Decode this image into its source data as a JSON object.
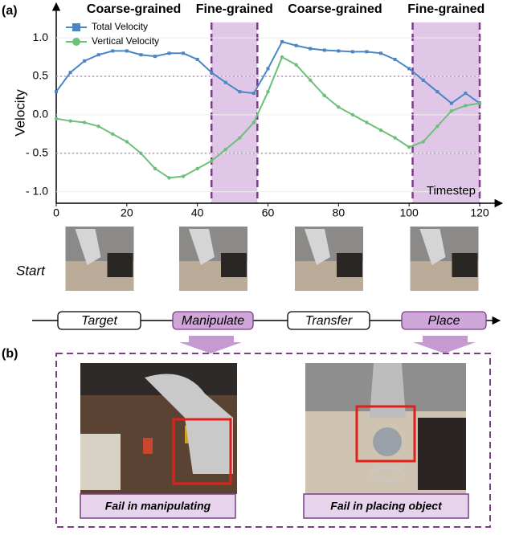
{
  "panel_a": "(a)",
  "panel_b": "(b)",
  "chart_data": {
    "type": "line",
    "ylabel": "Velocity",
    "xlabel": "Timestep",
    "x": [
      0,
      4,
      8,
      12,
      16,
      20,
      24,
      28,
      32,
      36,
      40,
      44,
      48,
      52,
      56,
      60,
      64,
      68,
      72,
      76,
      80,
      84,
      88,
      92,
      96,
      100,
      104,
      108,
      112,
      116,
      120
    ],
    "series": [
      {
        "name": "Total Velocity",
        "color": "#4a86c5",
        "marker": "square",
        "values": [
          0.3,
          0.55,
          0.7,
          0.78,
          0.83,
          0.83,
          0.78,
          0.76,
          0.8,
          0.8,
          0.72,
          0.55,
          0.42,
          0.3,
          0.28,
          0.6,
          0.95,
          0.9,
          0.86,
          0.84,
          0.83,
          0.82,
          0.82,
          0.8,
          0.72,
          0.6,
          0.45,
          0.3,
          0.15,
          0.28,
          0.15
        ]
      },
      {
        "name": "Vertical Velocity",
        "color": "#6cc07a",
        "marker": "circle",
        "values": [
          -0.05,
          -0.08,
          -0.1,
          -0.15,
          -0.25,
          -0.35,
          -0.5,
          -0.7,
          -0.82,
          -0.8,
          -0.7,
          -0.6,
          -0.45,
          -0.3,
          -0.1,
          0.3,
          0.75,
          0.65,
          0.45,
          0.25,
          0.1,
          0.0,
          -0.1,
          -0.2,
          -0.3,
          -0.42,
          -0.35,
          -0.15,
          0.05,
          0.12,
          0.15
        ]
      }
    ],
    "xlim": [
      0,
      120
    ],
    "xticks": [
      0,
      20,
      40,
      60,
      80,
      100,
      120
    ],
    "ylim": [
      -1.15,
      1.2
    ],
    "yticks": [
      {
        "value": -1,
        "label": "- 1.0"
      },
      {
        "value": -0.5,
        "label": "- 0.5"
      },
      {
        "value": 0,
        "label": "0.0"
      },
      {
        "value": 0.5,
        "label": "0.5"
      },
      {
        "value": 1,
        "label": "1.0"
      }
    ],
    "hlines": [
      0.5,
      -0.5
    ],
    "regions": [
      {
        "label": "Coarse-grained",
        "x": [
          0,
          44
        ],
        "shaded": false,
        "color": "#8c8c8c"
      },
      {
        "label": "Fine-grained",
        "x": [
          44,
          57
        ],
        "shaded": true,
        "color": "#7a3f86"
      },
      {
        "label": "Coarse-grained",
        "x": [
          57,
          101
        ],
        "shaded": false,
        "color": "#8c8c8c"
      },
      {
        "label": "Fine-grained",
        "x": [
          101,
          120
        ],
        "shaded": true,
        "color": "#7a3f86"
      }
    ]
  },
  "start_label": "Start",
  "stages": [
    "Target",
    "Manipulate",
    "Transfer",
    "Place"
  ],
  "failures": [
    "Fail in manipulating",
    "Fail in placing object"
  ]
}
